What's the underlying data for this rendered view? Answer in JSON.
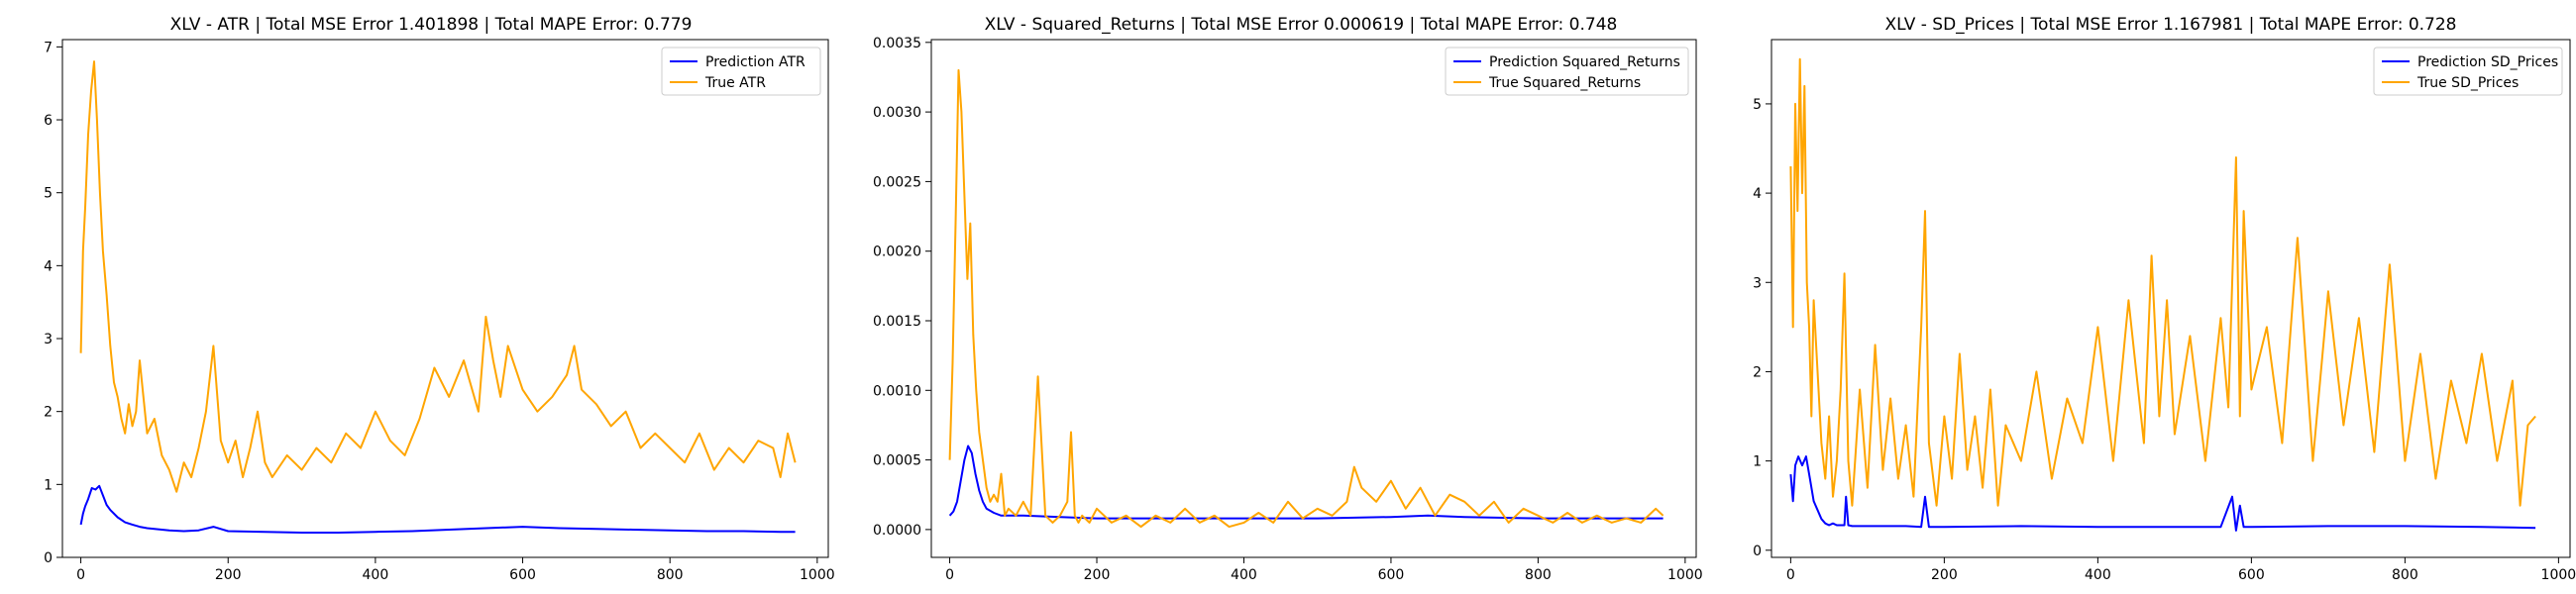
{
  "figure": {
    "background": "#ffffff"
  },
  "chart_data": [
    {
      "type": "line",
      "title": "XLV - ATR | Total MSE Error 1.401898 | Total MAPE Error: 0.779",
      "xlabel": "",
      "ylabel": "",
      "xlim": [
        -25,
        1015
      ],
      "ylim": [
        0,
        7.1
      ],
      "xticks": [
        0,
        200,
        400,
        600,
        800,
        1000
      ],
      "yticks": [
        0,
        1,
        2,
        3,
        4,
        5,
        6,
        7
      ],
      "ytick_labels": [
        "0",
        "1",
        "2",
        "3",
        "4",
        "5",
        "6",
        "7"
      ],
      "grid": false,
      "legend_position": "top-right",
      "series": [
        {
          "name": "Prediction ATR",
          "color": "#0000ff",
          "x": [
            0,
            3,
            6,
            10,
            15,
            20,
            25,
            30,
            35,
            40,
            50,
            60,
            70,
            80,
            90,
            100,
            120,
            140,
            160,
            180,
            200,
            250,
            300,
            350,
            400,
            450,
            500,
            550,
            600,
            650,
            700,
            750,
            800,
            850,
            900,
            950,
            970
          ],
          "y": [
            0.45,
            0.6,
            0.7,
            0.8,
            0.95,
            0.93,
            0.98,
            0.85,
            0.72,
            0.65,
            0.55,
            0.48,
            0.45,
            0.42,
            0.4,
            0.39,
            0.37,
            0.36,
            0.37,
            0.42,
            0.36,
            0.35,
            0.34,
            0.34,
            0.35,
            0.36,
            0.38,
            0.4,
            0.42,
            0.4,
            0.39,
            0.38,
            0.37,
            0.36,
            0.36,
            0.35,
            0.35
          ]
        },
        {
          "name": "True ATR",
          "color": "#ffa500",
          "x": [
            0,
            3,
            6,
            10,
            14,
            18,
            22,
            26,
            30,
            35,
            40,
            45,
            50,
            55,
            60,
            65,
            70,
            75,
            80,
            90,
            100,
            110,
            120,
            130,
            140,
            150,
            160,
            170,
            180,
            190,
            200,
            210,
            220,
            230,
            240,
            250,
            260,
            280,
            300,
            320,
            340,
            360,
            380,
            400,
            420,
            440,
            460,
            480,
            500,
            520,
            540,
            550,
            560,
            570,
            580,
            600,
            620,
            640,
            660,
            670,
            680,
            700,
            720,
            740,
            760,
            780,
            800,
            820,
            840,
            860,
            880,
            900,
            920,
            940,
            950,
            960,
            970
          ],
          "y": [
            2.8,
            4.2,
            4.8,
            5.8,
            6.4,
            6.8,
            6.0,
            5.0,
            4.2,
            3.6,
            2.9,
            2.4,
            2.2,
            1.9,
            1.7,
            2.1,
            1.8,
            2.0,
            2.7,
            1.7,
            1.9,
            1.4,
            1.2,
            0.9,
            1.3,
            1.1,
            1.5,
            2.0,
            2.9,
            1.6,
            1.3,
            1.6,
            1.1,
            1.5,
            2.0,
            1.3,
            1.1,
            1.4,
            1.2,
            1.5,
            1.3,
            1.7,
            1.5,
            2.0,
            1.6,
            1.4,
            1.9,
            2.6,
            2.2,
            2.7,
            2.0,
            3.3,
            2.7,
            2.2,
            2.9,
            2.3,
            2.0,
            2.2,
            2.5,
            2.9,
            2.3,
            2.1,
            1.8,
            2.0,
            1.5,
            1.7,
            1.5,
            1.3,
            1.7,
            1.2,
            1.5,
            1.3,
            1.6,
            1.5,
            1.1,
            1.7,
            1.3
          ]
        }
      ]
    },
    {
      "type": "line",
      "title": "XLV - Squared_Returns | Total MSE Error 0.000619 | Total MAPE Error: 0.748",
      "xlabel": "",
      "ylabel": "",
      "xlim": [
        -25,
        1015
      ],
      "ylim": [
        -0.0002,
        0.00352
      ],
      "xticks": [
        0,
        200,
        400,
        600,
        800,
        1000
      ],
      "yticks": [
        0,
        0.0005,
        0.001,
        0.0015,
        0.002,
        0.0025,
        0.003,
        0.0035
      ],
      "ytick_labels": [
        "0.0000",
        "0.0005",
        "0.0010",
        "0.0015",
        "0.0020",
        "0.0025",
        "0.0030",
        "0.0035"
      ],
      "grid": false,
      "legend_position": "top-right",
      "series": [
        {
          "name": "Prediction Squared_Returns",
          "color": "#0000ff",
          "x": [
            0,
            5,
            10,
            15,
            20,
            25,
            30,
            35,
            40,
            45,
            50,
            60,
            70,
            80,
            100,
            150,
            200,
            250,
            300,
            400,
            500,
            600,
            650,
            700,
            800,
            900,
            970
          ],
          "y": [
            0.0001,
            0.00013,
            0.0002,
            0.00035,
            0.0005,
            0.0006,
            0.00055,
            0.0004,
            0.00028,
            0.0002,
            0.00015,
            0.00012,
            0.0001,
            0.0001,
            0.0001,
            9e-05,
            8e-05,
            8e-05,
            8e-05,
            8e-05,
            8e-05,
            9e-05,
            0.0001,
            9e-05,
            8e-05,
            8e-05,
            8e-05
          ]
        },
        {
          "name": "True Squared_Returns",
          "color": "#ffa500",
          "x": [
            0,
            4,
            8,
            12,
            16,
            20,
            24,
            28,
            32,
            36,
            40,
            45,
            50,
            55,
            60,
            65,
            70,
            75,
            80,
            90,
            100,
            110,
            120,
            130,
            140,
            150,
            160,
            165,
            170,
            175,
            180,
            190,
            200,
            220,
            240,
            260,
            280,
            300,
            320,
            340,
            360,
            380,
            400,
            420,
            440,
            460,
            480,
            500,
            520,
            540,
            550,
            560,
            580,
            600,
            620,
            640,
            660,
            680,
            700,
            720,
            740,
            760,
            780,
            800,
            820,
            840,
            860,
            880,
            900,
            920,
            940,
            960,
            970
          ],
          "y": [
            0.0005,
            0.0012,
            0.0022,
            0.0033,
            0.003,
            0.0024,
            0.0018,
            0.0022,
            0.0014,
            0.001,
            0.0007,
            0.0005,
            0.0003,
            0.0002,
            0.00025,
            0.0002,
            0.0004,
            0.0001,
            0.00015,
            0.0001,
            0.0002,
            0.0001,
            0.0011,
            0.0001,
            5e-05,
            0.0001,
            0.0002,
            0.0007,
            0.0001,
            5e-05,
            0.0001,
            5e-05,
            0.00015,
            5e-05,
            0.0001,
            2e-05,
            0.0001,
            5e-05,
            0.00015,
            5e-05,
            0.0001,
            2e-05,
            5e-05,
            0.00012,
            5e-05,
            0.0002,
            8e-05,
            0.00015,
            0.0001,
            0.0002,
            0.00045,
            0.0003,
            0.0002,
            0.00035,
            0.00015,
            0.0003,
            0.0001,
            0.00025,
            0.0002,
            0.0001,
            0.0002,
            5e-05,
            0.00015,
            0.0001,
            5e-05,
            0.00012,
            5e-05,
            0.0001,
            5e-05,
            8e-05,
            5e-05,
            0.00015,
            0.0001
          ]
        }
      ]
    },
    {
      "type": "line",
      "title": "XLV - SD_Prices | Total MSE Error 1.167981 | Total MAPE Error: 0.728",
      "xlabel": "",
      "ylabel": "",
      "xlim": [
        -25,
        1015
      ],
      "ylim": [
        -0.08,
        5.72
      ],
      "xticks": [
        0,
        200,
        400,
        600,
        800,
        1000
      ],
      "yticks": [
        0,
        1,
        2,
        3,
        4,
        5
      ],
      "ytick_labels": [
        "0",
        "1",
        "2",
        "3",
        "4",
        "5"
      ],
      "grid": false,
      "legend_position": "top-right",
      "series": [
        {
          "name": "Prediction SD_Prices",
          "color": "#0000ff",
          "x": [
            0,
            3,
            6,
            10,
            15,
            20,
            25,
            30,
            35,
            40,
            45,
            50,
            55,
            60,
            70,
            72,
            75,
            80,
            100,
            150,
            170,
            175,
            180,
            200,
            300,
            400,
            500,
            560,
            575,
            580,
            585,
            590,
            600,
            700,
            800,
            900,
            970
          ],
          "y": [
            0.85,
            0.55,
            0.95,
            1.05,
            0.95,
            1.05,
            0.8,
            0.55,
            0.45,
            0.35,
            0.3,
            0.28,
            0.3,
            0.28,
            0.28,
            0.6,
            0.28,
            0.27,
            0.27,
            0.27,
            0.26,
            0.6,
            0.26,
            0.26,
            0.27,
            0.26,
            0.26,
            0.26,
            0.6,
            0.22,
            0.5,
            0.26,
            0.26,
            0.27,
            0.27,
            0.26,
            0.25
          ]
        },
        {
          "name": "True SD_Prices",
          "color": "#ffa500",
          "x": [
            0,
            3,
            6,
            9,
            12,
            15,
            18,
            21,
            24,
            27,
            30,
            35,
            40,
            45,
            50,
            55,
            60,
            65,
            70,
            75,
            80,
            90,
            100,
            110,
            120,
            130,
            140,
            150,
            160,
            170,
            175,
            180,
            190,
            200,
            210,
            220,
            230,
            240,
            250,
            260,
            270,
            280,
            300,
            320,
            340,
            360,
            380,
            400,
            420,
            440,
            460,
            470,
            480,
            490,
            500,
            520,
            540,
            560,
            570,
            580,
            585,
            590,
            600,
            620,
            640,
            660,
            680,
            700,
            720,
            740,
            760,
            780,
            800,
            820,
            840,
            860,
            880,
            900,
            920,
            940,
            950,
            960,
            970
          ],
          "y": [
            4.3,
            2.5,
            5.0,
            3.8,
            5.5,
            4.0,
            5.2,
            3.0,
            2.5,
            1.5,
            2.8,
            2.0,
            1.2,
            0.8,
            1.5,
            0.6,
            1.0,
            1.8,
            3.1,
            1.0,
            0.5,
            1.8,
            0.7,
            2.3,
            0.9,
            1.7,
            0.8,
            1.4,
            0.6,
            2.5,
            3.8,
            1.2,
            0.5,
            1.5,
            0.8,
            2.2,
            0.9,
            1.5,
            0.7,
            1.8,
            0.5,
            1.4,
            1.0,
            2.0,
            0.8,
            1.7,
            1.2,
            2.5,
            1.0,
            2.8,
            1.2,
            3.3,
            1.5,
            2.8,
            1.3,
            2.4,
            1.0,
            2.6,
            1.6,
            4.4,
            1.5,
            3.8,
            1.8,
            2.5,
            1.2,
            3.5,
            1.0,
            2.9,
            1.4,
            2.6,
            1.1,
            3.2,
            1.0,
            2.2,
            0.8,
            1.9,
            1.2,
            2.2,
            1.0,
            1.9,
            0.5,
            1.4,
            1.5
          ]
        }
      ]
    }
  ]
}
